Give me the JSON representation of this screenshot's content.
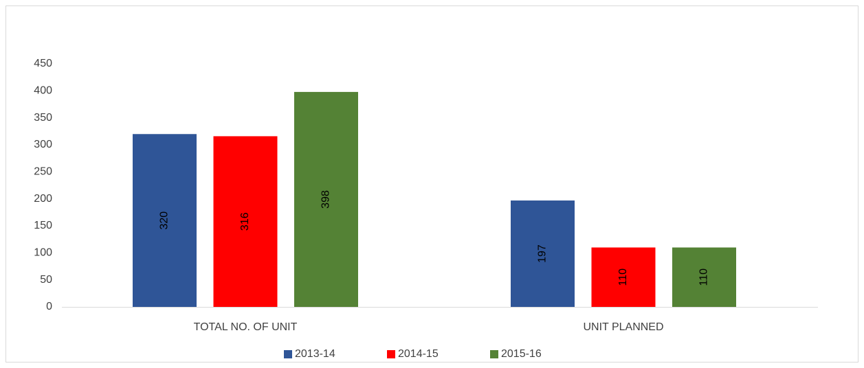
{
  "chart_data": {
    "type": "bar",
    "categories": [
      "TOTAL NO. OF UNIT",
      "UNIT PLANNED"
    ],
    "series": [
      {
        "name": "2013-14",
        "color": "#2f5597",
        "values": [
          320,
          197
        ]
      },
      {
        "name": "2014-15",
        "color": "#ff0000",
        "values": [
          316,
          110
        ]
      },
      {
        "name": "2015-16",
        "color": "#548235",
        "values": [
          398,
          110
        ]
      }
    ],
    "ylim": [
      0,
      450
    ],
    "yticks": [
      0,
      50,
      100,
      150,
      200,
      250,
      300,
      350,
      400,
      450
    ],
    "grid": false,
    "legend": "bottom",
    "data_labels": true
  }
}
